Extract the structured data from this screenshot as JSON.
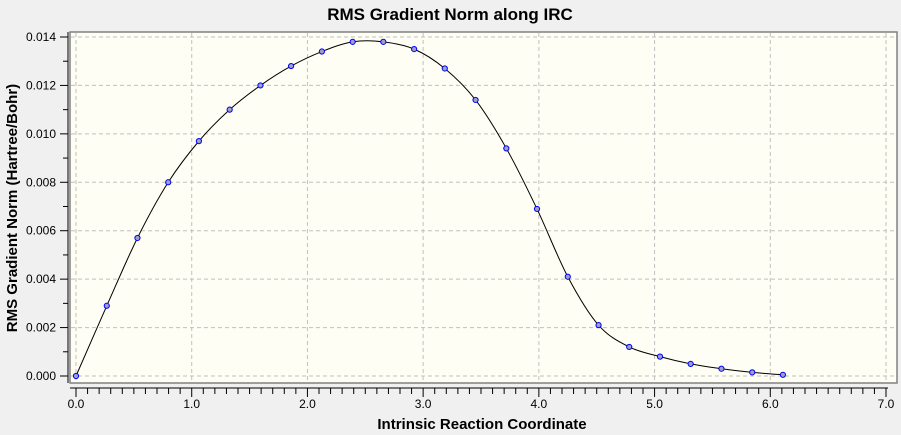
{
  "chart_data": {
    "type": "line",
    "title": "RMS Gradient Norm along IRC",
    "xlabel": "Intrinsic Reaction Coordinate",
    "ylabel": "RMS Gradient Norm (Hartree/Bohr)",
    "xlim": [
      0,
      7.0
    ],
    "ylim": [
      0,
      0.014
    ],
    "xticks": [
      "0.0",
      "1.0",
      "2.0",
      "3.0",
      "4.0",
      "5.0",
      "6.0",
      "7.0"
    ],
    "yticks": [
      "0.000",
      "0.002",
      "0.004",
      "0.006",
      "0.008",
      "0.010",
      "0.012",
      "0.014"
    ],
    "grid": true,
    "marker": "circle",
    "colors": {
      "plot_bg": "#fefef4",
      "line": "#000000",
      "marker_edge": "#0000ff",
      "marker_fill": "#a0a0c0",
      "grid": "#c0c0c0"
    },
    "series": [
      {
        "x": [
          0.0,
          0.266,
          0.531,
          0.797,
          1.062,
          1.328,
          1.594,
          1.859,
          2.125,
          2.391,
          2.656,
          2.922,
          3.187,
          3.453,
          3.719,
          3.984,
          4.25,
          4.516,
          4.781,
          5.047,
          5.312,
          5.578,
          5.844,
          6.109
        ],
        "y": [
          0.0,
          0.0029,
          0.0057,
          0.008,
          0.0097,
          0.011,
          0.012,
          0.0128,
          0.0134,
          0.0138,
          0.0138,
          0.0135,
          0.0127,
          0.0114,
          0.0094,
          0.0069,
          0.0041,
          0.0021,
          0.0012,
          0.0008,
          0.0005,
          0.0003,
          0.00015,
          5e-05
        ]
      }
    ]
  }
}
